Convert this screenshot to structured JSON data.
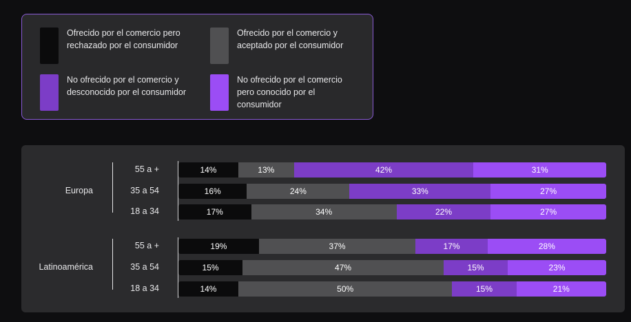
{
  "colors": {
    "rejected": "#0b0b0c",
    "accepted": "#505052",
    "unknown": "#7c3dc7",
    "known": "#9b4df5"
  },
  "legend": [
    {
      "key": "rejected",
      "label": "Ofrecido por el comercio pero rechazado por el consumidor"
    },
    {
      "key": "accepted",
      "label": "Ofrecido por el comercio y aceptado por el consumidor"
    },
    {
      "key": "unknown",
      "label": "No ofrecido por el comercio y desconocido por el consumidor"
    },
    {
      "key": "known",
      "label": "No ofrecido por el comercio pero conocido por el consumidor"
    }
  ],
  "chart_data": {
    "type": "bar",
    "orientation": "horizontal",
    "stacked": true,
    "unit": "%",
    "series_keys": [
      "rejected",
      "accepted",
      "unknown",
      "known"
    ],
    "groups": [
      {
        "name": "Europa",
        "rows": [
          {
            "label": "55 a +",
            "values": [
              14,
              13,
              42,
              31
            ]
          },
          {
            "label": "35 a 54",
            "values": [
              16,
              24,
              33,
              27
            ]
          },
          {
            "label": "18 a 34",
            "values": [
              17,
              34,
              22,
              27
            ]
          }
        ]
      },
      {
        "name": "Latinoamérica",
        "rows": [
          {
            "label": "55 a +",
            "values": [
              19,
              37,
              17,
              28
            ]
          },
          {
            "label": "35 a 54",
            "values": [
              15,
              47,
              15,
              23
            ]
          },
          {
            "label": "18 a 34",
            "values": [
              14,
              50,
              15,
              21
            ]
          }
        ]
      }
    ]
  }
}
